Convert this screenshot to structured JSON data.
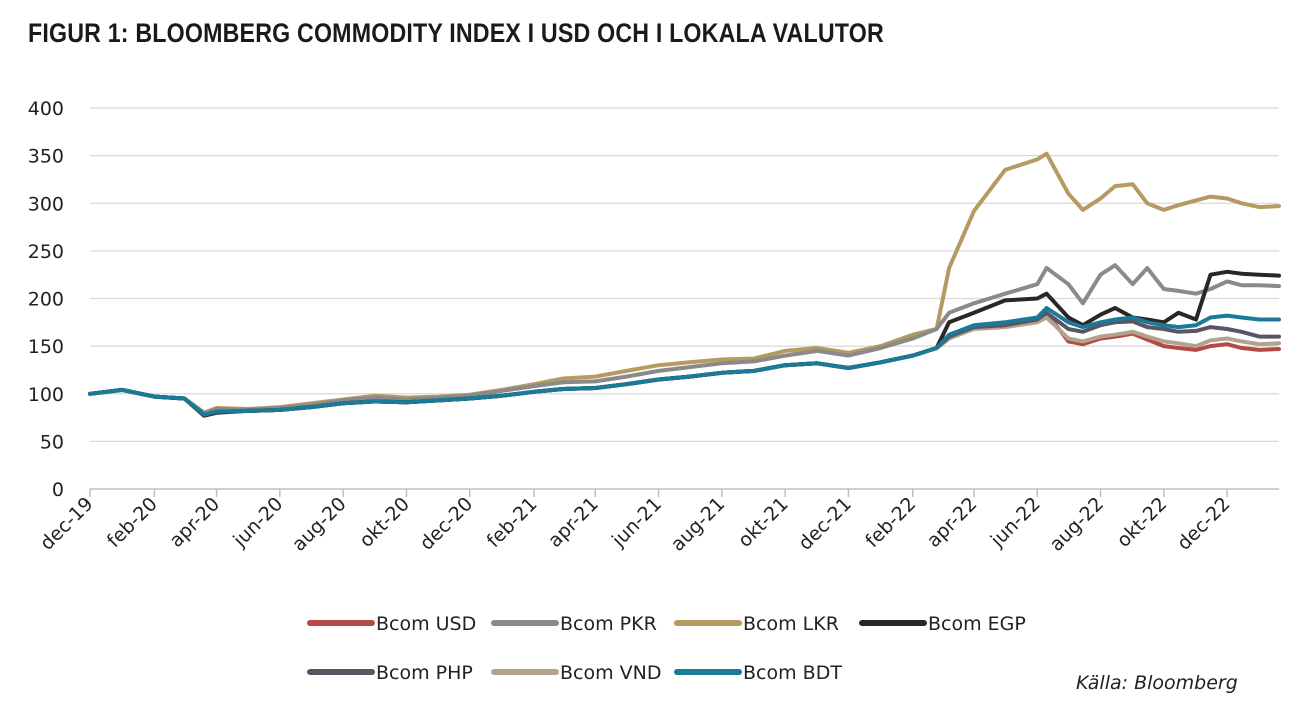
{
  "title": "FIGUR 1: BLOOMBERG COMMODITY INDEX I USD OCH I LOKALA VALUTOR",
  "source": "Källa: Bloomberg",
  "chart_data": {
    "type": "line",
    "title": "FIGUR 1: BLOOMBERG COMMODITY INDEX I USD OCH I LOKALA VALUTOR",
    "xlabel": "",
    "ylabel": "",
    "ylim": [
      0,
      400
    ],
    "yticks": [
      0,
      50,
      100,
      150,
      200,
      250,
      300,
      350,
      400
    ],
    "xlim": [
      "2019-12-01",
      "2023-01-20"
    ],
    "xticks": [
      "dec-19",
      "feb-20",
      "apr-20",
      "jun-20",
      "aug-20",
      "okt-20",
      "dec-20",
      "feb-21",
      "apr-21",
      "jun-21",
      "aug-21",
      "okt-21",
      "dec-21",
      "feb-22",
      "apr-22",
      "jun-22",
      "aug-22",
      "okt-22",
      "dec-22"
    ],
    "xtick_dates": [
      "2019-12-01",
      "2020-02-01",
      "2020-04-01",
      "2020-06-01",
      "2020-08-01",
      "2020-10-01",
      "2020-12-01",
      "2021-02-01",
      "2021-04-01",
      "2021-06-01",
      "2021-08-01",
      "2021-10-01",
      "2021-12-01",
      "2022-02-01",
      "2022-04-01",
      "2022-06-01",
      "2022-08-01",
      "2022-10-01",
      "2022-12-01"
    ],
    "grid": "horizontal",
    "legend_position": "bottom",
    "x": [
      "2019-12-01",
      "2020-01-01",
      "2020-02-01",
      "2020-03-01",
      "2020-03-20",
      "2020-04-01",
      "2020-05-01",
      "2020-06-01",
      "2020-07-01",
      "2020-08-01",
      "2020-09-01",
      "2020-10-01",
      "2020-11-01",
      "2020-12-01",
      "2021-01-01",
      "2021-02-01",
      "2021-03-01",
      "2021-04-01",
      "2021-05-01",
      "2021-06-01",
      "2021-07-01",
      "2021-08-01",
      "2021-09-01",
      "2021-10-01",
      "2021-11-01",
      "2021-12-01",
      "2022-01-01",
      "2022-02-01",
      "2022-02-24",
      "2022-03-08",
      "2022-04-01",
      "2022-05-01",
      "2022-06-01",
      "2022-06-10",
      "2022-07-01",
      "2022-07-15",
      "2022-08-01",
      "2022-08-15",
      "2022-09-01",
      "2022-09-15",
      "2022-10-01",
      "2022-10-15",
      "2022-11-01",
      "2022-11-15",
      "2022-12-01",
      "2022-12-15",
      "2023-01-01",
      "2023-01-20"
    ],
    "series": [
      {
        "name": "Bcom USD",
        "color": "#b54a45",
        "values": [
          100,
          104,
          97,
          95,
          78,
          81,
          82,
          83,
          86,
          90,
          92,
          91,
          93,
          95,
          98,
          102,
          105,
          106,
          110,
          115,
          118,
          122,
          124,
          130,
          132,
          127,
          133,
          140,
          148,
          158,
          170,
          172,
          178,
          185,
          155,
          152,
          158,
          160,
          163,
          157,
          150,
          148,
          146,
          150,
          152,
          148,
          146,
          147
        ]
      },
      {
        "name": "Bcom PKR",
        "color": "#8a8a8a",
        "values": [
          100,
          104,
          97,
          95,
          80,
          84,
          83,
          85,
          88,
          93,
          96,
          94,
          96,
          98,
          103,
          108,
          112,
          113,
          118,
          124,
          128,
          132,
          134,
          140,
          145,
          140,
          148,
          158,
          168,
          185,
          195,
          205,
          215,
          232,
          215,
          195,
          225,
          235,
          215,
          232,
          210,
          208,
          205,
          210,
          218,
          214,
          214,
          213
        ]
      },
      {
        "name": "Bcom LKR",
        "color": "#b59a62",
        "values": [
          100,
          104,
          97,
          95,
          80,
          85,
          84,
          86,
          90,
          94,
          98,
          96,
          97,
          99,
          104,
          110,
          116,
          118,
          124,
          130,
          133,
          136,
          137,
          145,
          148,
          143,
          150,
          162,
          168,
          232,
          292,
          335,
          346,
          352,
          310,
          293,
          305,
          318,
          320,
          300,
          293,
          298,
          303,
          307,
          305,
          300,
          296,
          297
        ]
      },
      {
        "name": "Bcom EGP",
        "color": "#2a2723",
        "values": [
          100,
          104,
          97,
          95,
          77,
          80,
          82,
          83,
          86,
          90,
          92,
          91,
          93,
          95,
          98,
          102,
          105,
          106,
          110,
          115,
          118,
          122,
          124,
          130,
          132,
          127,
          133,
          140,
          148,
          175,
          185,
          198,
          200,
          205,
          180,
          172,
          183,
          190,
          180,
          178,
          175,
          185,
          178,
          225,
          228,
          226,
          225,
          224
        ]
      },
      {
        "name": "Bcom PHP",
        "color": "#5a5565",
        "values": [
          100,
          104,
          97,
          95,
          78,
          81,
          82,
          83,
          86,
          90,
          92,
          91,
          93,
          95,
          98,
          102,
          105,
          106,
          110,
          115,
          118,
          122,
          124,
          130,
          132,
          127,
          133,
          140,
          148,
          160,
          170,
          172,
          178,
          185,
          168,
          165,
          172,
          175,
          176,
          170,
          168,
          165,
          166,
          170,
          168,
          165,
          160,
          160
        ]
      },
      {
        "name": "Bcom VND",
        "color": "#b3a28e",
        "values": [
          100,
          104,
          97,
          95,
          78,
          81,
          82,
          83,
          86,
          90,
          92,
          91,
          93,
          95,
          98,
          102,
          105,
          106,
          110,
          115,
          118,
          122,
          124,
          130,
          132,
          127,
          133,
          140,
          148,
          158,
          168,
          170,
          175,
          180,
          158,
          155,
          160,
          162,
          165,
          160,
          155,
          153,
          150,
          156,
          158,
          155,
          152,
          153
        ]
      },
      {
        "name": "Bcom BDT",
        "color": "#1b7a97",
        "values": [
          100,
          104,
          97,
          95,
          78,
          81,
          82,
          83,
          86,
          90,
          92,
          91,
          93,
          95,
          98,
          102,
          105,
          106,
          110,
          115,
          118,
          122,
          124,
          130,
          132,
          127,
          133,
          140,
          148,
          162,
          172,
          175,
          180,
          190,
          175,
          170,
          175,
          178,
          180,
          175,
          172,
          170,
          172,
          180,
          182,
          180,
          178,
          178
        ]
      }
    ]
  }
}
